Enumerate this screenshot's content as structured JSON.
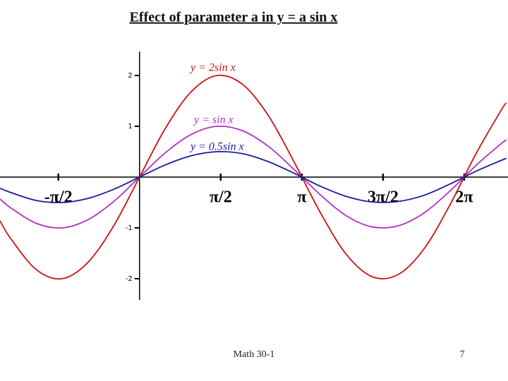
{
  "chart_data": {
    "type": "line",
    "title": "Effect of parameter a in  y = a sin x",
    "x": [
      -2.7,
      -2.5,
      -2,
      -1.5,
      -1,
      -0.5,
      0,
      0.5,
      1,
      1.5,
      2,
      2.5,
      3,
      3.5,
      4,
      4.5,
      5,
      5.5,
      6,
      6.5,
      7,
      7.1
    ],
    "series": [
      {
        "name": "y = 2sin x",
        "color": "#cc1111",
        "values": [
          -0.86,
          -1.2,
          -1.82,
          -2,
          -1.68,
          -0.96,
          0,
          0.96,
          1.68,
          2,
          1.82,
          1.2,
          0.28,
          -0.7,
          -1.52,
          -1.96,
          -1.92,
          -1.42,
          -0.56,
          0.44,
          1.32,
          1.46
        ]
      },
      {
        "name": "y = sin x",
        "color": "#b030c0",
        "values": [
          -0.43,
          -0.6,
          -0.91,
          -1,
          -0.84,
          -0.48,
          0,
          0.48,
          0.84,
          1,
          0.91,
          0.6,
          0.14,
          -0.35,
          -0.76,
          -0.98,
          -0.96,
          -0.71,
          -0.28,
          0.22,
          0.66,
          0.73
        ]
      },
      {
        "name": "y = 0.5sin x",
        "color": "#1a1a9a",
        "values": [
          -0.22,
          -0.3,
          -0.46,
          -0.5,
          -0.42,
          -0.24,
          0,
          0.24,
          0.42,
          0.5,
          0.46,
          0.3,
          0.07,
          -0.18,
          -0.38,
          -0.49,
          -0.48,
          -0.36,
          -0.14,
          0.11,
          0.33,
          0.37
        ]
      }
    ],
    "xlim": [
      -2.7,
      7.13
    ],
    "ylim": [
      -2.5,
      2.5
    ],
    "xticks": [
      {
        "value": -1.5708,
        "label": "-π/2"
      },
      {
        "value": 1.5708,
        "label": "π/2"
      },
      {
        "value": 3.1416,
        "label": "π"
      },
      {
        "value": 4.7124,
        "label": "3π/2"
      },
      {
        "value": 6.2832,
        "label": "2π"
      }
    ],
    "yticks": [
      -2,
      -1,
      1,
      2
    ],
    "footer": "Math 30-1",
    "page_number": "7"
  }
}
